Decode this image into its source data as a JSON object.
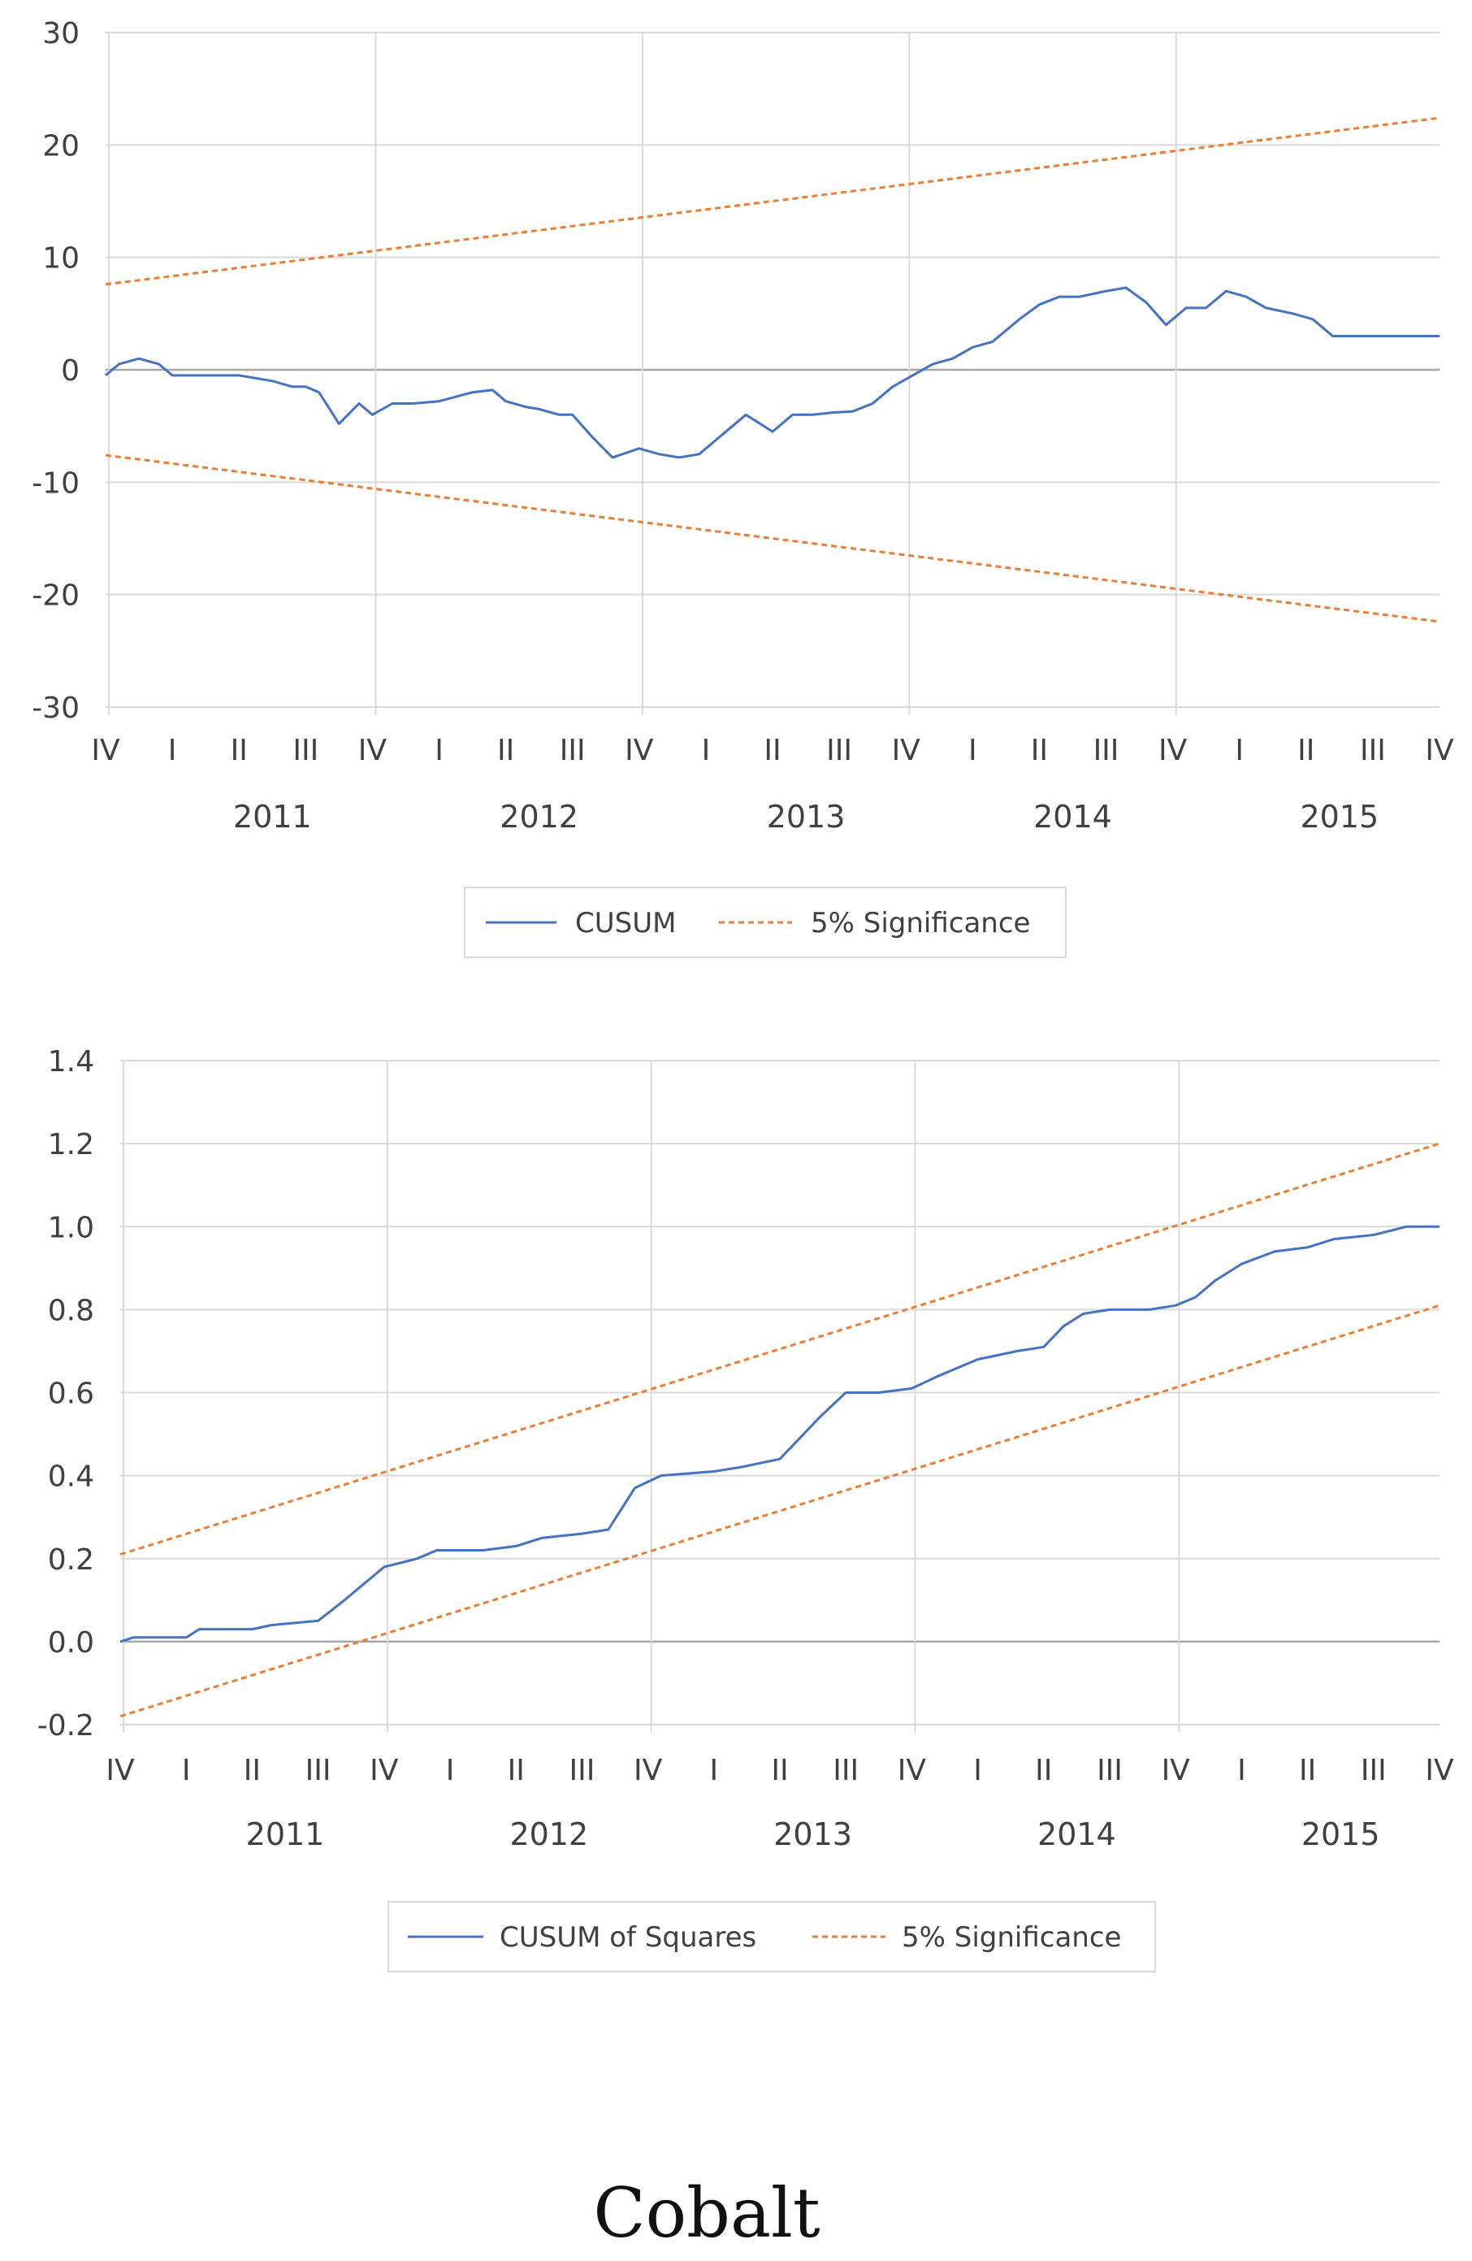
{
  "colors": {
    "cusum": "#4472c4",
    "significance": "#ed7d31",
    "grid": "#d9d9d9",
    "zero": "#a6a6a6",
    "text": "#404040"
  },
  "caption": "Cobalt",
  "chart_data": [
    {
      "type": "line",
      "title": "",
      "ylim": [
        -30,
        30
      ],
      "yticks": [
        30,
        20,
        10,
        0,
        -10,
        -20,
        -30
      ],
      "ytick_labels": [
        "30",
        "20",
        "10",
        "0",
        "-10",
        "-20",
        "-30"
      ],
      "quarter_labels": [
        "IV",
        "I",
        "II",
        "III",
        "IV",
        "I",
        "II",
        "III",
        "IV",
        "I",
        "II",
        "III",
        "IV",
        "I",
        "II",
        "III",
        "IV",
        "I",
        "II",
        "III",
        "IV"
      ],
      "years": [
        "2011",
        "2012",
        "2013",
        "2014",
        "2015"
      ],
      "x_range": [
        0,
        20
      ],
      "series": [
        {
          "name": "CUSUM",
          "style": "solid",
          "x": [
            0,
            0.2,
            0.5,
            0.8,
            1.0,
            1.3,
            1.5,
            2.0,
            2.5,
            2.8,
            3.0,
            3.2,
            3.5,
            3.8,
            4.0,
            4.3,
            4.6,
            5.0,
            5.5,
            5.8,
            6.0,
            6.3,
            6.5,
            6.8,
            7.0,
            7.3,
            7.6,
            8.0,
            8.3,
            8.6,
            8.9,
            9.2,
            9.6,
            10.0,
            10.3,
            10.6,
            10.9,
            11.2,
            11.5,
            11.8,
            12.1,
            12.4,
            12.7,
            13.0,
            13.3,
            13.7,
            14.0,
            14.3,
            14.6,
            15.0,
            15.3,
            15.6,
            15.9,
            16.2,
            16.5,
            16.8,
            17.1,
            17.4,
            17.8,
            18.1,
            18.4,
            18.7,
            19.0,
            19.3,
            19.6,
            19.8,
            20.0
          ],
          "values": [
            -0.5,
            0.5,
            1.0,
            0.5,
            -0.5,
            -0.5,
            -0.5,
            -0.5,
            -1.0,
            -1.5,
            -1.5,
            -2.0,
            -4.8,
            -3.0,
            -4.0,
            -3.0,
            -3.0,
            -2.8,
            -2.0,
            -1.8,
            -2.8,
            -3.3,
            -3.5,
            -4.0,
            -4.0,
            -6.0,
            -7.8,
            -7.0,
            -7.5,
            -7.8,
            -7.5,
            -6.0,
            -4.0,
            -5.5,
            -4.0,
            -4.0,
            -3.8,
            -3.7,
            -3.0,
            -1.5,
            -0.5,
            0.5,
            1.0,
            2.0,
            2.5,
            4.5,
            5.8,
            6.5,
            6.5,
            7.0,
            7.3,
            6.0,
            4.0,
            5.5,
            5.5,
            7.0,
            6.5,
            5.5,
            5.0,
            4.5,
            3.0,
            3.0,
            3.0,
            3.0,
            3.0,
            3.0,
            3.0
          ],
          "color": "#4472c4"
        },
        {
          "name": "5% Significance",
          "style": "dashed",
          "x": [
            0,
            20
          ],
          "values": [
            7.6,
            22.4
          ],
          "color": "#ed7d31"
        },
        {
          "name": "5% Significance (lower)",
          "style": "dashed",
          "x": [
            0,
            20
          ],
          "values": [
            -7.6,
            -22.4
          ],
          "color": "#ed7d31"
        }
      ],
      "legend": [
        "CUSUM",
        "5% Significance"
      ]
    },
    {
      "type": "line",
      "title": "",
      "ylim": [
        -0.2,
        1.4
      ],
      "yticks": [
        1.4,
        1.2,
        1.0,
        0.8,
        0.6,
        0.4,
        0.2,
        0.0,
        -0.2
      ],
      "ytick_labels": [
        "1.4",
        "1.2",
        "1.0",
        "0.8",
        "0.6",
        "0.4",
        "0.2",
        "0.0",
        "-0.2"
      ],
      "quarter_labels": [
        "IV",
        "I",
        "II",
        "III",
        "IV",
        "I",
        "II",
        "III",
        "IV",
        "I",
        "II",
        "III",
        "IV",
        "I",
        "II",
        "III",
        "IV",
        "I",
        "II",
        "III",
        "IV"
      ],
      "years": [
        "2011",
        "2012",
        "2013",
        "2014",
        "2015"
      ],
      "x_range": [
        0,
        20
      ],
      "series": [
        {
          "name": "CUSUM of Squares",
          "style": "solid",
          "x": [
            0,
            0.2,
            0.5,
            1.0,
            1.2,
            2.0,
            2.3,
            3.0,
            3.4,
            4.0,
            4.5,
            4.8,
            5.5,
            6.0,
            6.4,
            7.0,
            7.4,
            7.8,
            8.2,
            9.0,
            9.4,
            9.7,
            10.0,
            10.3,
            10.6,
            11.0,
            11.5,
            12.0,
            12.4,
            13.0,
            13.3,
            13.6,
            14.0,
            14.3,
            14.6,
            15.0,
            15.3,
            15.6,
            16.0,
            16.3,
            16.6,
            17.0,
            17.5,
            18.0,
            18.4,
            19.0,
            19.5,
            20.0
          ],
          "values": [
            0.0,
            0.01,
            0.01,
            0.01,
            0.03,
            0.03,
            0.04,
            0.05,
            0.1,
            0.18,
            0.2,
            0.22,
            0.22,
            0.23,
            0.25,
            0.26,
            0.27,
            0.37,
            0.4,
            0.41,
            0.42,
            0.43,
            0.44,
            0.49,
            0.54,
            0.6,
            0.6,
            0.61,
            0.64,
            0.68,
            0.69,
            0.7,
            0.71,
            0.76,
            0.79,
            0.8,
            0.8,
            0.8,
            0.81,
            0.83,
            0.87,
            0.91,
            0.94,
            0.95,
            0.97,
            0.98,
            1.0,
            1.0
          ],
          "color": "#4472c4"
        },
        {
          "name": "5% Significance",
          "style": "dashed",
          "x": [
            0,
            20
          ],
          "values": [
            0.21,
            1.2
          ],
          "color": "#ed7d31"
        },
        {
          "name": "5% Significance (lower)",
          "style": "dashed",
          "x": [
            0,
            20
          ],
          "values": [
            -0.18,
            0.81
          ],
          "color": "#ed7d31"
        }
      ],
      "legend": [
        "CUSUM of Squares",
        "5% Significance"
      ]
    }
  ]
}
